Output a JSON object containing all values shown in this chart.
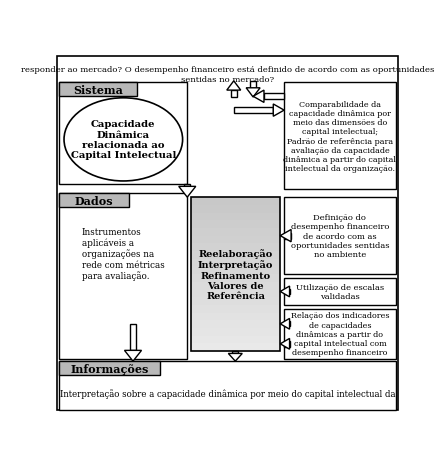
{
  "bg_color": "#ffffff",
  "top_text": "responder ao mercado? O desempenho financeiro está definido de acordo com as oportunidades\nsentidas no mercado?",
  "sistema_label": "Sistema",
  "sistema_body": "Capacidade\nDinâmica\nrelacionada ao\nCapital Intelectual",
  "dados_label": "Dados",
  "dados_body": "Instrumentos\naplicáveis a\norganizações na\nrede com métricas\npara avaliação.",
  "center_label": "Reelaboração\nInterpretação\nRefinamento\nValores de\nReferência",
  "informacoes_label": "Informações",
  "informacoes_body": "Interpretação sobre a capacidade dinâmica por meio do capital intelectual da",
  "right_box1": "Comparabilidade da\ncapacidade dinâmica por\nmeio das dimensões do\ncapital intelectual;\nPadrão de referência para\navaliação da capacidade\ndinâmica a partir do capital\nintelectual da organização.",
  "right_box2": "Definição do\ndesempenho financeiro\nde acordo com as\noportunidades sentidas\nno ambiente",
  "right_box3": "Utilização de escalas\nvalidadas",
  "right_box4": "Relação dos indicadores\nde capacidades\ndinâmicas a partir do\ncapital intelectual com\ndesempenho financeiro",
  "header_gray": "#b8b8b8",
  "center_gray": "#c8c8c8"
}
